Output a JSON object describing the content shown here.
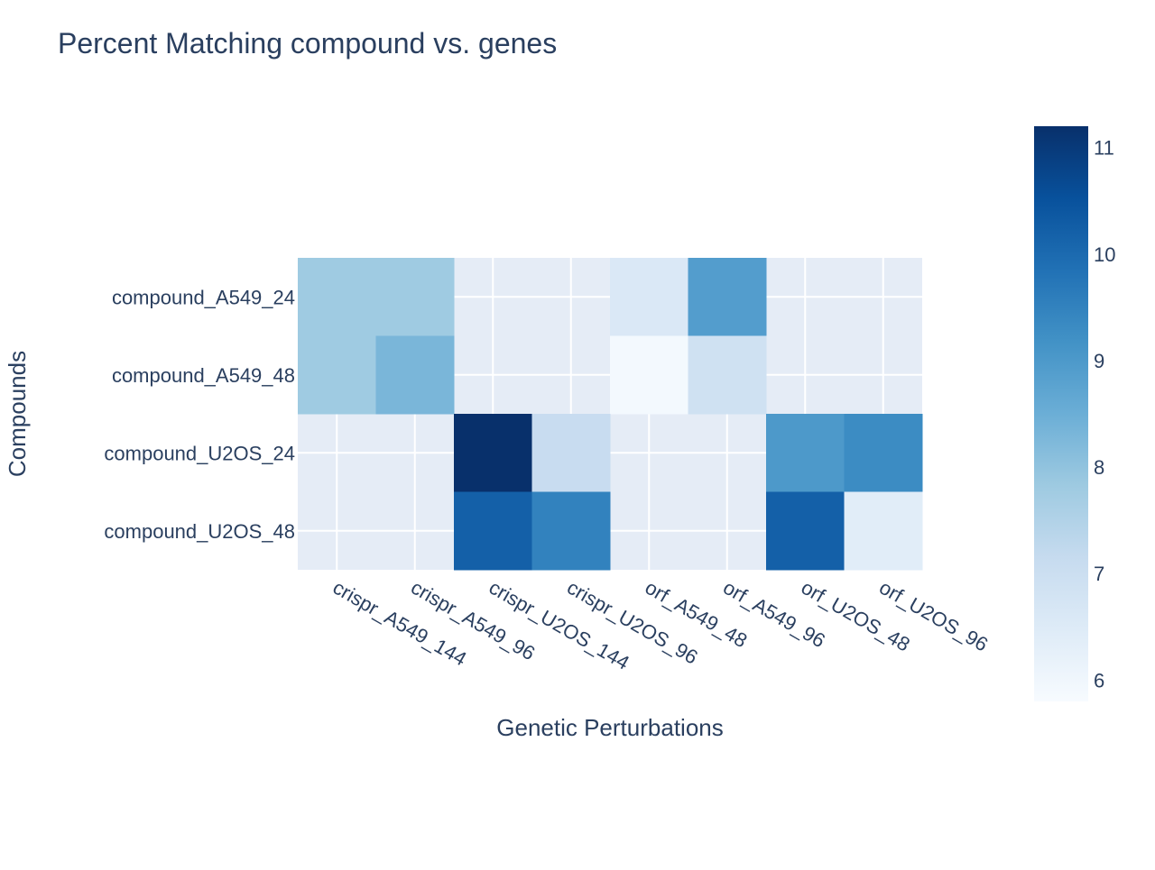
{
  "chart_data": {
    "type": "heatmap",
    "title": "Percent Matching compound vs. genes",
    "xlabel": "Genetic Perturbations",
    "ylabel": "Compounds",
    "x": [
      "crispr_A549_144",
      "crispr_A549_96",
      "crispr_U2OS_144",
      "crispr_U2OS_96",
      "orf_A549_48",
      "orf_A549_96",
      "orf_U2OS_48",
      "orf_U2OS_96"
    ],
    "y": [
      "compound_A549_24",
      "compound_A549_48",
      "compound_U2OS_24",
      "compound_U2OS_48"
    ],
    "z": [
      [
        7.8,
        7.8,
        null,
        null,
        6.6,
        8.9,
        null,
        null
      ],
      [
        7.8,
        8.3,
        null,
        null,
        5.9,
        6.9,
        null,
        null
      ],
      [
        null,
        null,
        11.2,
        7.1,
        null,
        null,
        9.0,
        9.3
      ],
      [
        null,
        null,
        10.2,
        9.5,
        null,
        null,
        10.2,
        6.4
      ]
    ],
    "colorscale": "Blues",
    "colorbar": {
      "range": [
        5.8,
        11.2
      ],
      "ticks": [
        6,
        7,
        8,
        9,
        10,
        11
      ],
      "tick_labels": [
        "6",
        "7",
        "8",
        "9",
        "10",
        "11"
      ]
    },
    "colors": {
      "text": "#2a3f5f",
      "plot_background": "#e5ecf6",
      "gridline": "#ffffff"
    }
  }
}
